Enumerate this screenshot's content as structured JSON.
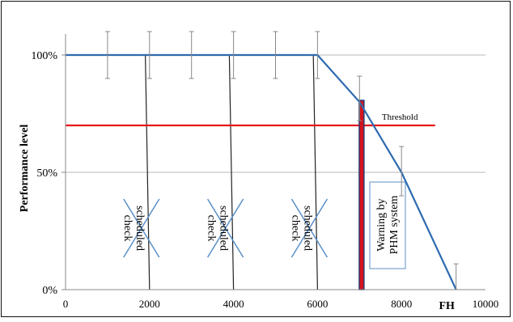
{
  "chart_data": {
    "type": "line",
    "title": "",
    "xlabel": "FH",
    "ylabel": "Performance level",
    "xlim": [
      0,
      10000
    ],
    "ylim": [
      0,
      100
    ],
    "x_ticks": [
      {
        "value": 0,
        "label": "0"
      },
      {
        "value": 2000,
        "label": "2000"
      },
      {
        "value": 4000,
        "label": "4000"
      },
      {
        "value": 6000,
        "label": "6000"
      },
      {
        "value": 8000,
        "label": "8000"
      },
      {
        "value": 10000,
        "label": "10000"
      }
    ],
    "y_ticks": [
      {
        "value": 0,
        "label": "0%"
      },
      {
        "value": 50,
        "label": "50%"
      },
      {
        "value": 100,
        "label": "100%"
      }
    ],
    "grid": "horizontal",
    "series": [
      {
        "color": "#2e6bb0",
        "x": [
          0,
          6000,
          7000,
          8000,
          9300
        ],
        "y": [
          100,
          100,
          80,
          50,
          0
        ]
      }
    ],
    "error_bars": [
      {
        "x": 1000,
        "low": 90,
        "high": 110
      },
      {
        "x": 2000,
        "low": 90,
        "high": 110
      },
      {
        "x": 3000,
        "low": 90,
        "high": 110
      },
      {
        "x": 4000,
        "low": 90,
        "high": 110
      },
      {
        "x": 5000,
        "low": 90,
        "high": 110
      },
      {
        "x": 6000,
        "low": 90,
        "high": 110
      },
      {
        "x": 7000,
        "low": 72,
        "high": 91
      },
      {
        "x": 8000,
        "low": 40,
        "high": 61
      },
      {
        "x": 9300,
        "low": 0,
        "high": 11
      }
    ],
    "threshold": {
      "value": 70,
      "x_range": [
        0,
        8800
      ],
      "label": "Threshold",
      "color": "#e8141b"
    },
    "scheduled_checks": [
      {
        "x_top": 1900,
        "x_bottom": 2000,
        "label": "scheduled check"
      },
      {
        "x_top": 3900,
        "x_bottom": 4000,
        "label": "scheduled check"
      },
      {
        "x_top": 5900,
        "x_bottom": 6000,
        "label": "scheduled check"
      }
    ],
    "warning": {
      "x": 7050,
      "label_line1": "Warning by",
      "label_line2": "PHM system"
    }
  }
}
